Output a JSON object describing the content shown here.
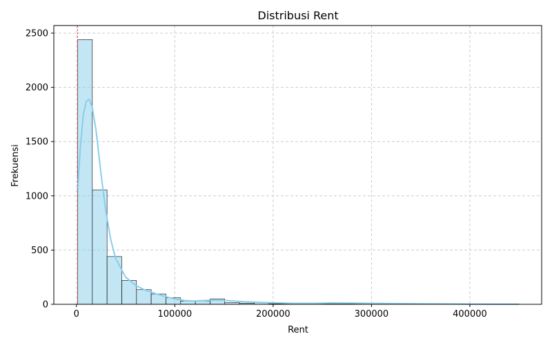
{
  "chart_data": {
    "type": "bar",
    "subtype": "histogram",
    "title": "Distribusi Rent",
    "xlabel": "Rent",
    "ylabel": "Frekuensi",
    "xlim": [
      -23000,
      473000
    ],
    "ylim": [
      0,
      2570
    ],
    "x_ticks": [
      0,
      100000,
      200000,
      300000,
      400000
    ],
    "x_tick_labels": [
      "0",
      "100000",
      "200000",
      "300000",
      "400000"
    ],
    "y_ticks": [
      0,
      500,
      1000,
      1500,
      2000,
      2500
    ],
    "y_tick_labels": [
      "0",
      "500",
      "1000",
      "1500",
      "2000",
      "2500"
    ],
    "grid": true,
    "bins": {
      "start": 1200,
      "width": 14960,
      "counts": [
        2440,
        1055,
        440,
        220,
        135,
        95,
        60,
        30,
        30,
        50,
        15,
        10,
        15,
        5,
        5,
        5,
        5,
        5,
        5,
        5,
        2,
        5,
        2,
        2,
        2,
        2,
        2,
        2,
        2,
        2
      ]
    },
    "kde": {
      "x": [
        1200,
        4000,
        7000,
        10000,
        13000,
        16000,
        20000,
        25000,
        30000,
        35000,
        40000,
        50000,
        60000,
        70000,
        80000,
        90000,
        100000,
        110000,
        120000,
        130000,
        140000,
        150000,
        160000,
        170000,
        180000,
        190000,
        200000,
        220000,
        240000,
        260000,
        280000,
        300000,
        320000,
        350000,
        380000,
        400000,
        430000,
        450000
      ],
      "y": [
        1050,
        1450,
        1750,
        1870,
        1890,
        1820,
        1600,
        1200,
        850,
        590,
        420,
        250,
        175,
        130,
        100,
        72,
        48,
        35,
        30,
        35,
        38,
        36,
        30,
        24,
        20,
        17,
        14,
        9,
        9,
        12,
        11,
        9,
        7,
        5,
        3,
        2,
        1,
        1
      ]
    },
    "median_line": {
      "x": 1200
    },
    "colors": {
      "bar_fill": "#87ceeb",
      "bar_fill_opacity": 0.5,
      "bar_edge": "#000000",
      "kde_line": "#87ceeb",
      "grid": "#cccccc",
      "median_line": "#d62728"
    }
  }
}
